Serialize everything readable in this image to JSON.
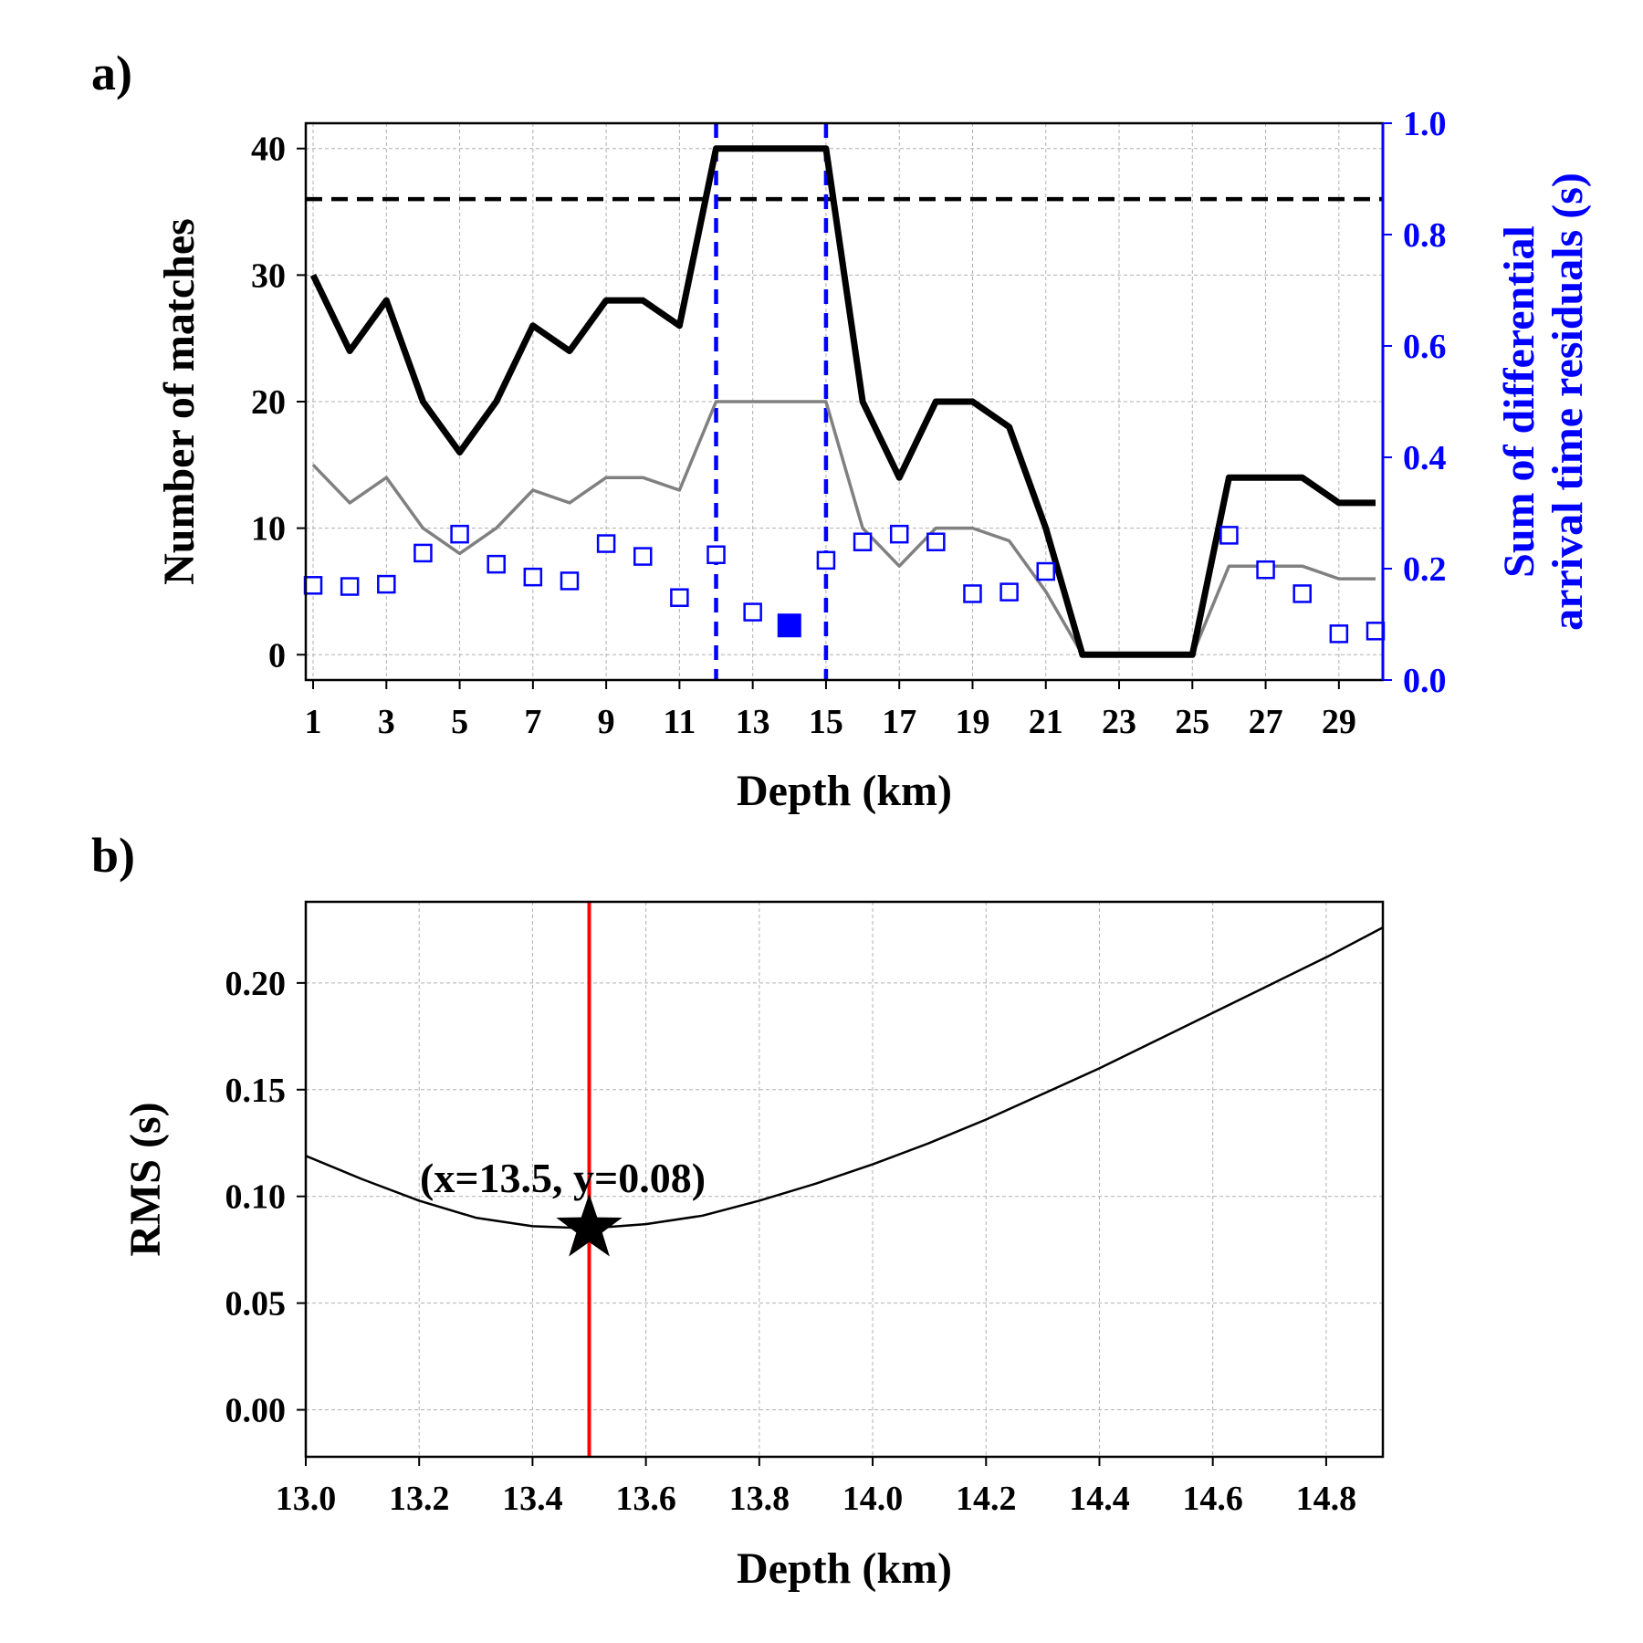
{
  "figure": {
    "background": "#ffffff"
  },
  "chart_data": [
    {
      "panel_label": "a)",
      "type": "line",
      "xlabel": "Depth (km)",
      "ylabel": "Number of matches",
      "y2label_line1": "Sum of differential",
      "y2label_line2": "arrival time residuals (s)",
      "xlim": [
        0.8,
        30.2
      ],
      "ylim": [
        -2,
        42
      ],
      "y2lim": [
        0,
        1.0
      ],
      "grid": true,
      "x_ticks": [
        1,
        3,
        5,
        7,
        9,
        11,
        13,
        15,
        17,
        19,
        21,
        23,
        25,
        27,
        29
      ],
      "x_tick_labels": [
        "1",
        "3",
        "5",
        "7",
        "9",
        "11",
        "13",
        "15",
        "17",
        "19",
        "21",
        "23",
        "25",
        "27",
        "29"
      ],
      "y_ticks": [
        0,
        10,
        20,
        30,
        40
      ],
      "y_tick_labels": [
        "0",
        "10",
        "20",
        "30",
        "40"
      ],
      "y2_ticks": [
        0.0,
        0.2,
        0.4,
        0.6,
        0.8,
        1.0
      ],
      "y2_tick_labels": [
        "0.0",
        "0.2",
        "0.4",
        "0.6",
        "0.8",
        "1.0"
      ],
      "x": [
        1,
        2,
        3,
        4,
        5,
        6,
        7,
        8,
        9,
        10,
        11,
        12,
        13,
        14,
        15,
        16,
        17,
        18,
        19,
        20,
        21,
        22,
        23,
        24,
        25,
        26,
        27,
        28,
        29,
        30
      ],
      "series": [
        {
          "role": "matches-total",
          "axis": "left",
          "color": "#000000",
          "values": [
            30,
            24,
            28,
            20,
            16,
            20,
            26,
            24,
            28,
            28,
            26,
            40,
            40,
            40,
            40,
            20,
            14,
            20,
            20,
            18,
            10,
            0,
            0,
            0,
            0,
            14,
            14,
            14,
            12,
            12
          ]
        },
        {
          "role": "matches-half",
          "axis": "left",
          "color": "#808080",
          "values": [
            15,
            12,
            14,
            10,
            8,
            10,
            13,
            12,
            14,
            14,
            13,
            20,
            20,
            20,
            20,
            10,
            7,
            10,
            10,
            9,
            5,
            0,
            0,
            0,
            0,
            7,
            7,
            7,
            6,
            6
          ]
        },
        {
          "role": "residual-sum",
          "axis": "right",
          "color": "#0000ff",
          "marker": "square-open",
          "values": [
            0.17,
            0.168,
            0.172,
            0.228,
            0.262,
            0.208,
            0.185,
            0.178,
            0.245,
            0.222,
            0.148,
            0.225,
            0.122,
            null,
            0.215,
            0.248,
            0.262,
            0.248,
            0.155,
            0.158,
            0.195,
            null,
            null,
            null,
            null,
            0.26,
            0.198,
            0.155,
            0.083,
            0.088
          ]
        },
        {
          "role": "residual-minimum",
          "axis": "right",
          "color": "#0000ff",
          "marker": "square-filled",
          "x": [
            14
          ],
          "values": [
            0.098
          ]
        }
      ],
      "reference_lines": [
        {
          "orientation": "horizontal",
          "axis": "left",
          "value": 36,
          "style": "dashed",
          "color": "#000000"
        },
        {
          "orientation": "vertical",
          "value": 12,
          "style": "dashed",
          "color": "#0000ff"
        },
        {
          "orientation": "vertical",
          "value": 15,
          "style": "dashed",
          "color": "#0000ff"
        }
      ],
      "colors": {
        "right_axis": "#0000ff"
      }
    },
    {
      "panel_label": "b)",
      "type": "line",
      "xlabel": "Depth (km)",
      "ylabel": "RMS (s)",
      "xlim": [
        13.0,
        14.9
      ],
      "ylim": [
        -0.022,
        0.238
      ],
      "grid": true,
      "x_ticks": [
        13.0,
        13.2,
        13.4,
        13.6,
        13.8,
        14.0,
        14.2,
        14.4,
        14.6,
        14.8
      ],
      "x_tick_labels": [
        "13.0",
        "13.2",
        "13.4",
        "13.6",
        "13.8",
        "14.0",
        "14.2",
        "14.4",
        "14.6",
        "14.8"
      ],
      "y_ticks": [
        0.0,
        0.05,
        0.1,
        0.15,
        0.2
      ],
      "y_tick_labels": [
        "0.00",
        "0.05",
        "0.10",
        "0.15",
        "0.20"
      ],
      "series": [
        {
          "role": "rms-curve",
          "color": "#000000",
          "x": [
            13.0,
            13.1,
            13.2,
            13.3,
            13.4,
            13.5,
            13.6,
            13.7,
            13.8,
            13.9,
            14.0,
            14.1,
            14.2,
            14.3,
            14.4,
            14.5,
            14.6,
            14.7,
            14.8,
            14.9
          ],
          "values": [
            0.119,
            0.108,
            0.098,
            0.09,
            0.086,
            0.085,
            0.087,
            0.091,
            0.098,
            0.106,
            0.115,
            0.125,
            0.136,
            0.148,
            0.16,
            0.173,
            0.186,
            0.199,
            0.212,
            0.226
          ]
        }
      ],
      "reference_lines": [
        {
          "orientation": "vertical",
          "value": 13.5,
          "style": "solid",
          "color": "#ff0000"
        }
      ],
      "marker_point": {
        "x": 13.5,
        "y": 0.085,
        "shape": "star",
        "color": "#000000"
      },
      "annotation": "(x=13.5, y=0.08)"
    }
  ]
}
